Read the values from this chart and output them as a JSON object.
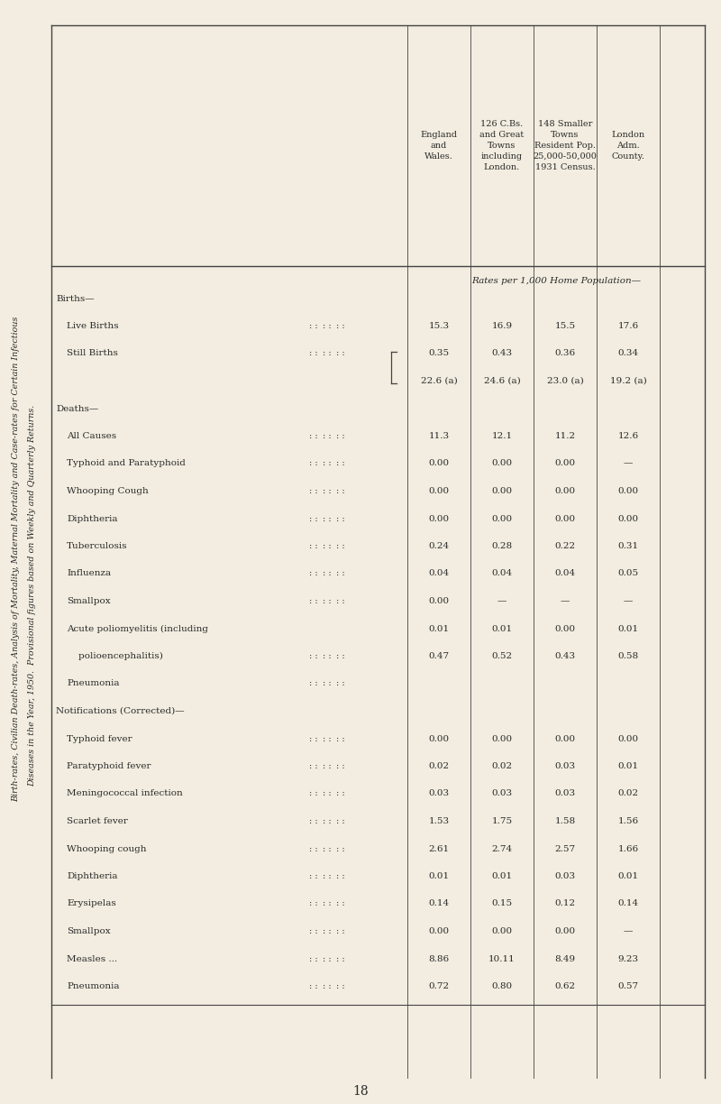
{
  "title_line1": "Birth-rates, Civilian Death-rates, Analysis of Mortality, Maternal Mortality and Case-rates for Certain Infectious",
  "title_line2": "Diseases in the Year, 1950.  Provisional figures based on Weekly and Quarterly Returns.",
  "col_headers": [
    [
      "England",
      "and",
      "Wales."
    ],
    [
      "126 C.Bs.",
      "and Great",
      "Towns",
      "including",
      "London."
    ],
    [
      "148 Smaller",
      "Towns",
      "Resident Pop.",
      "25,000-50,000",
      "1931 Census."
    ],
    [
      "London",
      "Adm.",
      "County."
    ]
  ],
  "rates_header": "Rates per 1,000 Home Population—",
  "rows": [
    {
      "label": "Births—",
      "group": true,
      "indent": 0,
      "dots": "",
      "vals": [
        "",
        "",
        "",
        ""
      ]
    },
    {
      "label": "Live Births",
      "group": false,
      "indent": 1,
      "dots": ": :",
      "vals": [
        "15.3",
        "16.9",
        "15.5",
        "17.6"
      ]
    },
    {
      "label": "Still Births",
      "group": false,
      "indent": 1,
      "dots": ": :",
      "vals": [
        "0.35",
        "0.43",
        "0.36",
        "0.34"
      ],
      "brace": true
    },
    {
      "label": "",
      "group": false,
      "indent": 1,
      "dots": "",
      "vals": [
        "22.6 (a)",
        "24.6 (a)",
        "23.0 (a)",
        "19.2 (a)"
      ]
    },
    {
      "label": "Deaths—",
      "group": true,
      "indent": 0,
      "dots": "",
      "vals": [
        "",
        "",
        "",
        ""
      ]
    },
    {
      "label": "All Causes",
      "group": false,
      "indent": 1,
      "dots": ": :",
      "vals": [
        "11.3",
        "12.1",
        "11.2",
        "12.6"
      ]
    },
    {
      "label": "Typhoid and Paratyphoid",
      "group": false,
      "indent": 1,
      "dots": ": :",
      "vals": [
        "0.00",
        "0.00",
        "0.00",
        "—"
      ]
    },
    {
      "label": "Whooping Cough",
      "group": false,
      "indent": 1,
      "dots": ": :",
      "vals": [
        "0.00",
        "0.00",
        "0.00",
        "0.00"
      ]
    },
    {
      "label": "Diphtheria",
      "group": false,
      "indent": 1,
      "dots": ": :",
      "vals": [
        "0.00",
        "0.00",
        "0.00",
        "0.00"
      ]
    },
    {
      "label": "Tuberculosis",
      "group": false,
      "indent": 1,
      "dots": ": :",
      "vals": [
        "0.24",
        "0.28",
        "0.22",
        "0.31"
      ]
    },
    {
      "label": "Influenza",
      "group": false,
      "indent": 1,
      "dots": ": :",
      "vals": [
        "0.04",
        "0.04",
        "0.04",
        "0.05"
      ]
    },
    {
      "label": "Smallpox",
      "group": false,
      "indent": 1,
      "dots": ": :",
      "vals": [
        "0.00",
        "—",
        "—",
        "—"
      ]
    },
    {
      "label": "Acute poliomyelitis (including",
      "group": false,
      "indent": 1,
      "dots": "",
      "vals": [
        "0.01",
        "0.01",
        "0.00",
        "0.01"
      ]
    },
    {
      "label": "    polioencephalitis)",
      "group": false,
      "indent": 1,
      "dots": ": :",
      "vals": [
        "0.47",
        "0.52",
        "0.43",
        "0.58"
      ]
    },
    {
      "label": "Pneumonia",
      "group": false,
      "indent": 1,
      "dots": ": :",
      "vals": [
        "",
        "",
        "",
        ""
      ]
    },
    {
      "label": "Notifications (Corrected)—",
      "group": true,
      "indent": 0,
      "dots": "",
      "vals": [
        "",
        "",
        "",
        ""
      ]
    },
    {
      "label": "Typhoid fever",
      "group": false,
      "indent": 1,
      "dots": ": :",
      "vals": [
        "0.00",
        "0.00",
        "0.00",
        "0.00"
      ]
    },
    {
      "label": "Paratyphoid fever",
      "group": false,
      "indent": 1,
      "dots": ": :",
      "vals": [
        "0.02",
        "0.02",
        "0.03",
        "0.01"
      ]
    },
    {
      "label": "Meningococcal infection",
      "group": false,
      "indent": 1,
      "dots": ": :",
      "vals": [
        "0.03",
        "0.03",
        "0.03",
        "0.02"
      ]
    },
    {
      "label": "Scarlet fever",
      "group": false,
      "indent": 1,
      "dots": ": :",
      "vals": [
        "1.53",
        "1.75",
        "1.58",
        "1.56"
      ]
    },
    {
      "label": "Whooping cough",
      "group": false,
      "indent": 1,
      "dots": ": :",
      "vals": [
        "2.61",
        "2.74",
        "2.57",
        "1.66"
      ]
    },
    {
      "label": "Diphtheria",
      "group": false,
      "indent": 1,
      "dots": ": :",
      "vals": [
        "0.01",
        "0.01",
        "0.03",
        "0.01"
      ]
    },
    {
      "label": "Erysipelas",
      "group": false,
      "indent": 1,
      "dots": ": :",
      "vals": [
        "0.14",
        "0.15",
        "0.12",
        "0.14"
      ]
    },
    {
      "label": "Smallpox",
      "group": false,
      "indent": 1,
      "dots": ": :",
      "vals": [
        "0.00",
        "0.00",
        "0.00",
        "—"
      ]
    },
    {
      "label": "Measles ...",
      "group": false,
      "indent": 1,
      "dots": ": :",
      "vals": [
        "8.86",
        "10.11",
        "8.49",
        "9.23"
      ]
    },
    {
      "label": "Pneumonia",
      "group": false,
      "indent": 1,
      "dots": ": :",
      "vals": [
        "0.72",
        "0.80",
        "0.62",
        "0.57"
      ]
    }
  ],
  "page_number": "18",
  "bg_color": "#f2ede0",
  "text_color": "#2a2a2a",
  "line_color": "#444444"
}
